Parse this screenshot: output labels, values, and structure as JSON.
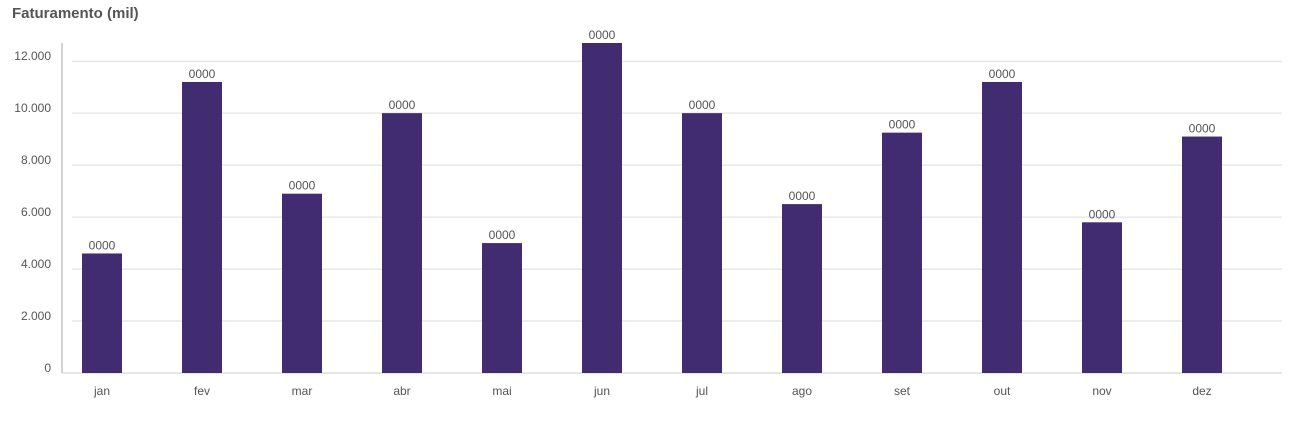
{
  "chart_data": {
    "type": "bar",
    "title": "Faturamento (mil)",
    "categories": [
      "jan",
      "fev",
      "mar",
      "abr",
      "mai",
      "jun",
      "jul",
      "ago",
      "set",
      "out",
      "nov",
      "dez"
    ],
    "values": [
      4600,
      11200,
      6900,
      10000,
      5000,
      12700,
      10000,
      6500,
      9250,
      11200,
      5800,
      9100
    ],
    "data_labels": [
      "0000",
      "0000",
      "0000",
      "0000",
      "0000",
      "0000",
      "0000",
      "0000",
      "0000",
      "0000",
      "0000",
      "0000"
    ],
    "y_ticks": [
      0,
      2000,
      4000,
      6000,
      8000,
      10000,
      12000
    ],
    "y_tick_labels": [
      "0",
      "2.000",
      "4.000",
      "6.000",
      "8.000",
      "10.000",
      "12.000"
    ],
    "ylim": [
      0,
      12700
    ],
    "grid": true,
    "bar_color": "#412c71",
    "grid_color": "#dddddd",
    "xlabel": "",
    "ylabel": ""
  }
}
